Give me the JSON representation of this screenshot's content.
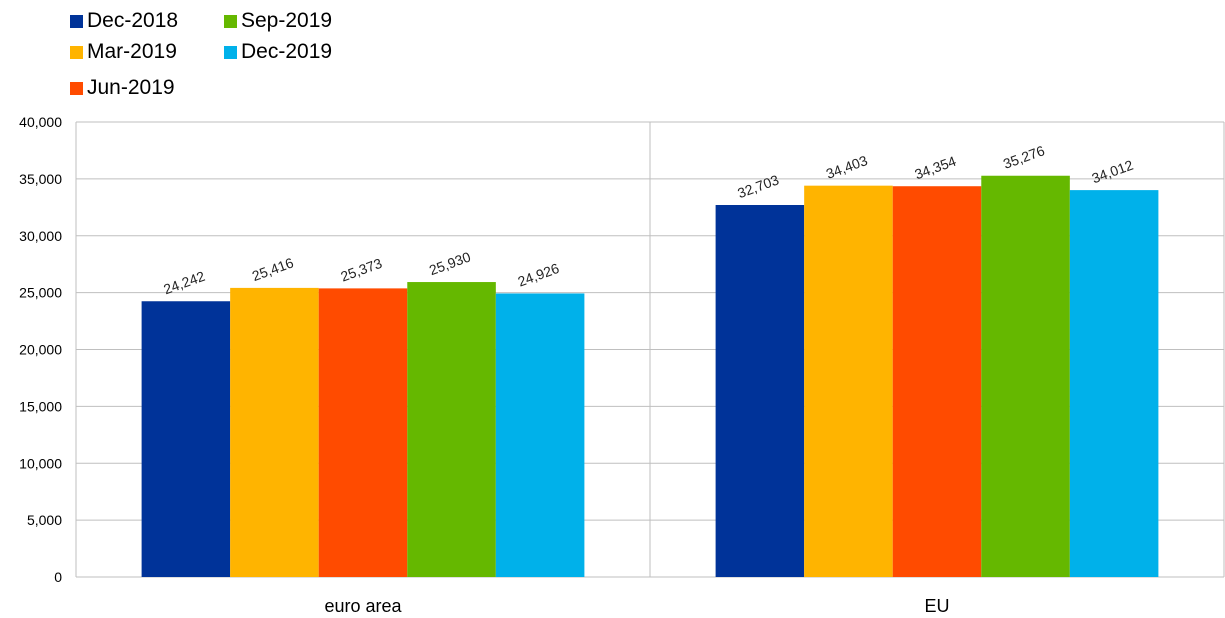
{
  "chart_data": {
    "type": "bar",
    "title": "",
    "xlabel": "",
    "ylabel": "",
    "categories": [
      "euro area",
      "EU"
    ],
    "series": [
      {
        "name": "Dec-2018",
        "color": "#003399",
        "values": [
          24242,
          32703
        ]
      },
      {
        "name": "Mar-2019",
        "color": "#FFB400",
        "values": [
          25416,
          34403
        ]
      },
      {
        "name": "Jun-2019",
        "color": "#FF4B00",
        "values": [
          25373,
          34354
        ]
      },
      {
        "name": "Sep-2019",
        "color": "#65B800",
        "values": [
          25930,
          35276
        ]
      },
      {
        "name": "Dec-2019",
        "color": "#00B1EA",
        "values": [
          24926,
          34012
        ]
      }
    ],
    "ylim": [
      0,
      40000
    ],
    "yticks": [
      0,
      5000,
      10000,
      15000,
      20000,
      25000,
      30000,
      35000,
      40000
    ],
    "ytick_labels": [
      "0",
      "5,000",
      "10,000",
      "15,000",
      "20,000",
      "25,000",
      "30,000",
      "35,000",
      "40,000"
    ],
    "data_labels": [
      [
        "24,242",
        "32,703"
      ],
      [
        "25,416",
        "34,403"
      ],
      [
        "25,373",
        "34,354"
      ],
      [
        "25,930",
        "35,276"
      ],
      [
        "24,926",
        "34,012"
      ]
    ],
    "grid": "horizontal",
    "legend_position": "top-left"
  }
}
